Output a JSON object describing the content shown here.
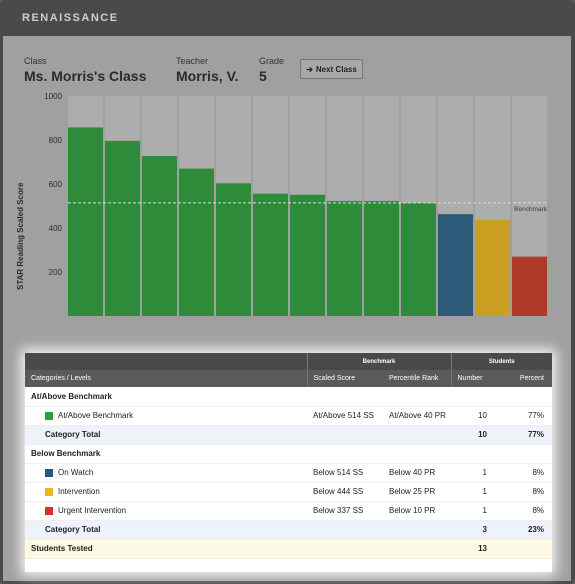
{
  "app": {
    "brand": "RENAISSANCE"
  },
  "header": {
    "class_label": "Class",
    "class_value": "Ms. Morris's Class",
    "teacher_label": "Teacher",
    "teacher_value": "Morris, V.",
    "grade_label": "Grade",
    "grade_value": "5",
    "next_button": "Next Class"
  },
  "chart_data": {
    "type": "bar",
    "ylabel": "STAR Reading Scaled Score",
    "ylim": [
      0,
      1000
    ],
    "yticks": [
      200,
      400,
      600,
      800,
      1000
    ],
    "benchmark": 514,
    "benchmark_label": "Benchmark",
    "values": [
      857,
      796,
      727,
      670,
      603,
      556,
      551,
      523,
      523,
      513,
      463,
      437,
      270
    ],
    "colors": [
      "#2e8b3a",
      "#2e8b3a",
      "#2e8b3a",
      "#2e8b3a",
      "#2e8b3a",
      "#2e8b3a",
      "#2e8b3a",
      "#2e8b3a",
      "#2e8b3a",
      "#2e8b3a",
      "#2d5a78",
      "#c9a021",
      "#b03a28"
    ],
    "colors_meaning": {
      "at_above": "#2e8b3a",
      "on_watch": "#2d5a78",
      "intervention": "#c9a021",
      "urgent": "#b03a28"
    }
  },
  "table": {
    "group_benchmark": "Benchmark",
    "group_students": "Students",
    "col_category": "Categories / Levels",
    "col_scaled": "Scaled Score",
    "col_percentile": "Percentile Rank",
    "col_number": "Number",
    "col_percent": "Percent",
    "sections": [
      {
        "title": "At/Above Benchmark",
        "rows": [
          {
            "name": "At/Above Benchmark",
            "color": "#2e9e3a",
            "scaled": "At/Above 514 SS",
            "pr": "At/Above 40 PR",
            "number": "10",
            "percent": "77%"
          }
        ],
        "total_label": "Category Total",
        "total_number": "10",
        "total_percent": "77%"
      },
      {
        "title": "Below Benchmark",
        "rows": [
          {
            "name": "On Watch",
            "color": "#1f5a8a",
            "scaled": "Below 514 SS",
            "pr": "Below 40 PR",
            "number": "1",
            "percent": "8%"
          },
          {
            "name": "Intervention",
            "color": "#e8b820",
            "scaled": "Below 444 SS",
            "pr": "Below 25 PR",
            "number": "1",
            "percent": "8%"
          },
          {
            "name": "Urgent Intervention",
            "color": "#d9302a",
            "scaled": "Below 337 SS",
            "pr": "Below 10 PR",
            "number": "1",
            "percent": "8%"
          }
        ],
        "total_label": "Category Total",
        "total_number": "3",
        "total_percent": "23%"
      }
    ],
    "tested_label": "Students Tested",
    "tested_number": "13"
  }
}
